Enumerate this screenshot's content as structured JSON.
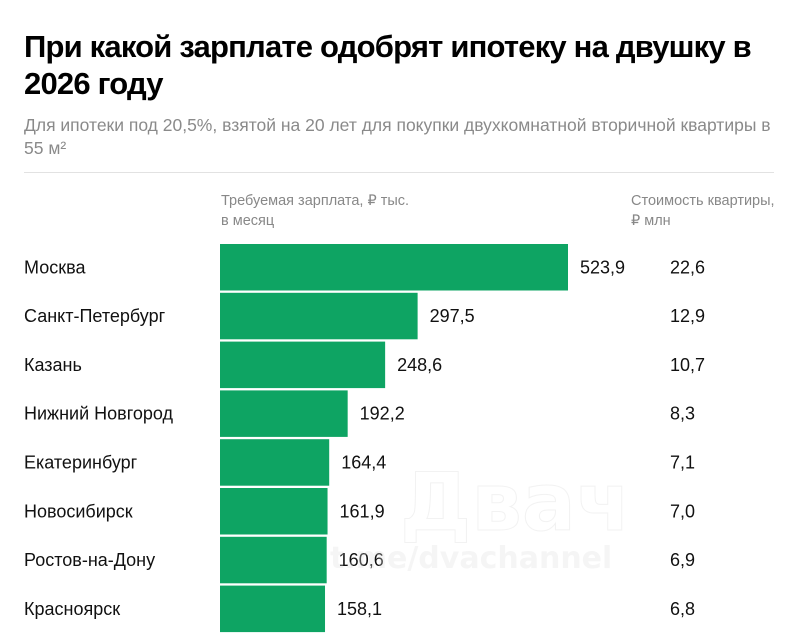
{
  "chart_data": {
    "type": "bar",
    "orientation": "horizontal",
    "title": "При какой зарплате одобрят ипотеку на двушку в 2026 году",
    "subtitle": "Для ипотеки под 20,5%, взятой на 20 лет для покупки двухкомнатной вторичной квартиры в 55 м²",
    "column_headers": {
      "salary": "Требуемая зарплата, ₽ тыс. в месяц",
      "price": "Стоимость квартиры, ₽ млн"
    },
    "categories": [
      "Москва",
      "Санкт-Петербург",
      "Казань",
      "Нижний Новгород",
      "Екатеринбург",
      "Новосибирск",
      "Ростов-на-Дону",
      "Красноярск"
    ],
    "series": [
      {
        "name": "Требуемая зарплата, ₽ тыс. в месяц",
        "values": [
          523.9,
          297.5,
          248.6,
          192.2,
          164.4,
          161.9,
          160.6,
          158.1
        ],
        "labels": [
          "523,9",
          "297,5",
          "248,6",
          "192,2",
          "164,4",
          "161,9",
          "160,6",
          "158,1"
        ]
      },
      {
        "name": "Стоимость квартиры, ₽ млн",
        "values": [
          22.6,
          12.9,
          10.7,
          8.3,
          7.1,
          7.0,
          6.9,
          6.8
        ],
        "labels": [
          "22,6",
          "12,9",
          "10,7",
          "8,3",
          "7,1",
          "7,0",
          "6,9",
          "6,8"
        ]
      }
    ],
    "xlim": [
      0,
      523.9
    ],
    "grid": false,
    "legend": "none",
    "bar_color": "#0ea463"
  },
  "watermark": {
    "logo": "Двач",
    "handle": "t.me/dvachannel"
  }
}
